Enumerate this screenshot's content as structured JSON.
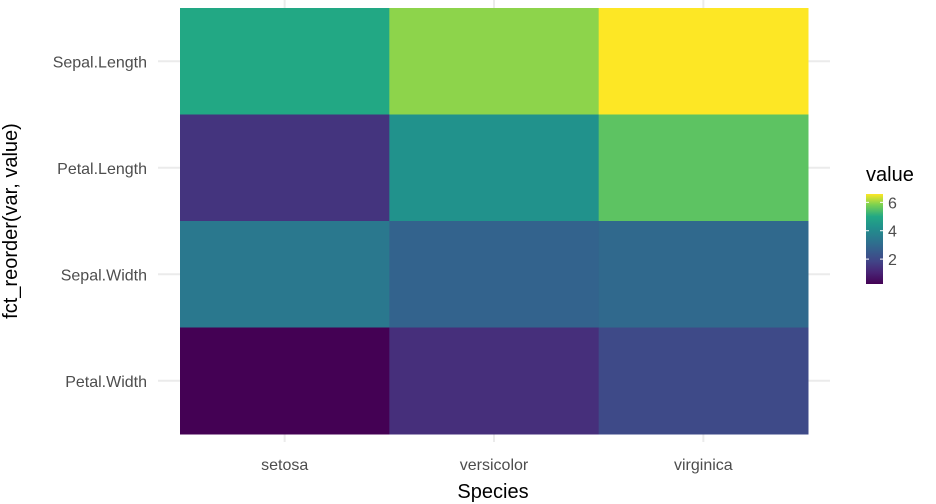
{
  "chart_data": {
    "type": "heatmap",
    "title": "",
    "xlabel": "Species",
    "ylabel": "fct_reorder(var, value)",
    "x_categories": [
      "setosa",
      "versicolor",
      "virginica"
    ],
    "y_categories": [
      "Sepal.Length",
      "Petal.Length",
      "Sepal.Width",
      "Petal.Width"
    ],
    "values": [
      [
        5.006,
        5.936,
        6.588
      ],
      [
        1.462,
        4.26,
        5.552
      ],
      [
        3.428,
        2.77,
        2.974
      ],
      [
        0.246,
        1.326,
        2.026
      ]
    ],
    "color_scale": "viridis",
    "value_range": [
      0.246,
      6.588
    ],
    "grid": true,
    "legend": {
      "title": "value",
      "placement": "right",
      "ticks": [
        2,
        4,
        6
      ],
      "tick_labels": [
        "2",
        "4",
        "6"
      ]
    }
  }
}
